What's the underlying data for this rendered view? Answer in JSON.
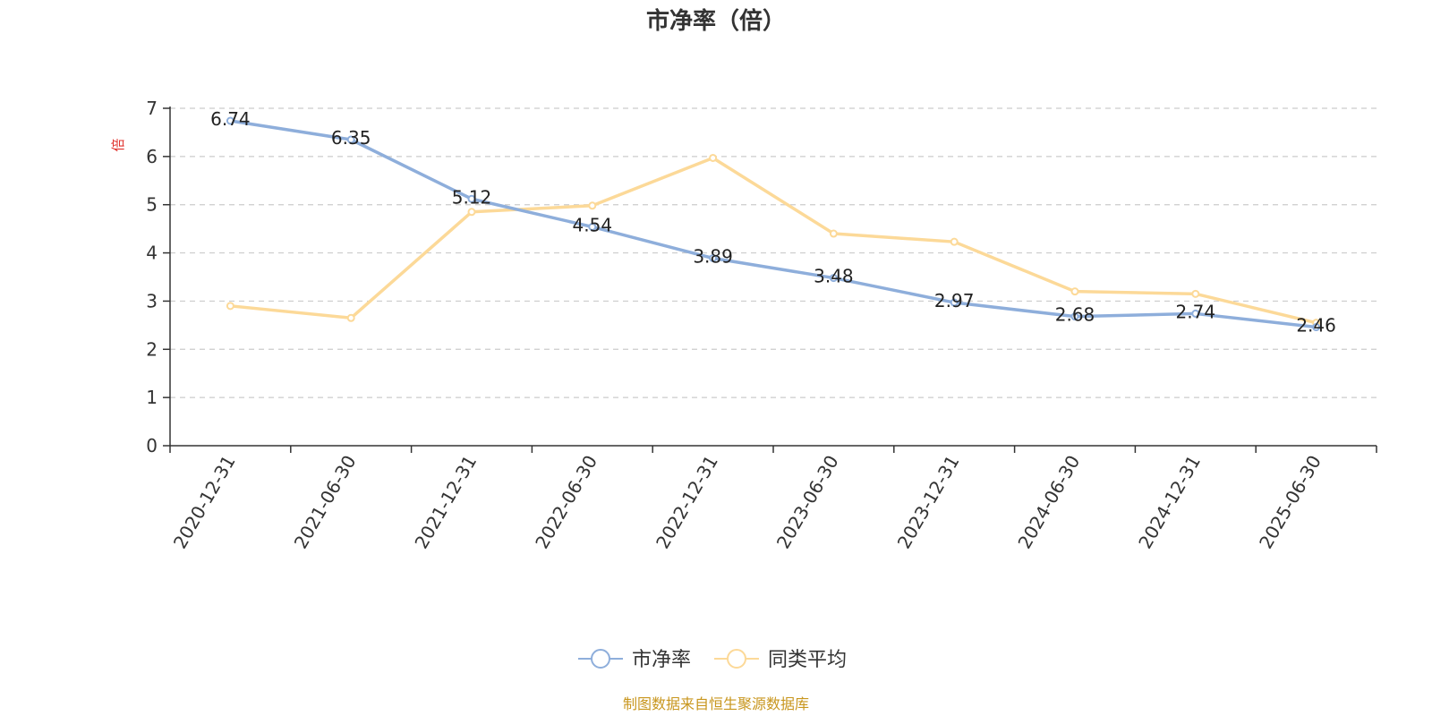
{
  "chart_data": {
    "type": "line",
    "title": "市净率（倍）",
    "ylabel": "倍",
    "ylim": [
      0,
      7
    ],
    "yticks": [
      0,
      1,
      2,
      3,
      4,
      5,
      6,
      7
    ],
    "grid": true,
    "legend_position": "bottom-center",
    "categories": [
      "2020-12-31",
      "2021-06-30",
      "2021-12-31",
      "2022-06-30",
      "2022-12-31",
      "2023-06-30",
      "2023-12-31",
      "2024-06-30",
      "2024-12-31",
      "2025-06-30"
    ],
    "series": [
      {
        "name": "市净率",
        "color": "#8eaedb",
        "values": [
          6.74,
          6.35,
          5.12,
          4.54,
          3.89,
          3.48,
          2.97,
          2.68,
          2.74,
          2.46
        ],
        "labels": [
          "6.74",
          "6.35",
          "5.12",
          "4.54",
          "3.89",
          "3.48",
          "2.97",
          "2.68",
          "2.74",
          "2.46"
        ]
      },
      {
        "name": "同类平均",
        "color": "#fcd998",
        "values": [
          2.9,
          2.65,
          4.85,
          4.98,
          5.97,
          4.4,
          4.23,
          3.2,
          3.15,
          2.55
        ]
      }
    ],
    "source_note": "制图数据来自恒生聚源数据库"
  }
}
